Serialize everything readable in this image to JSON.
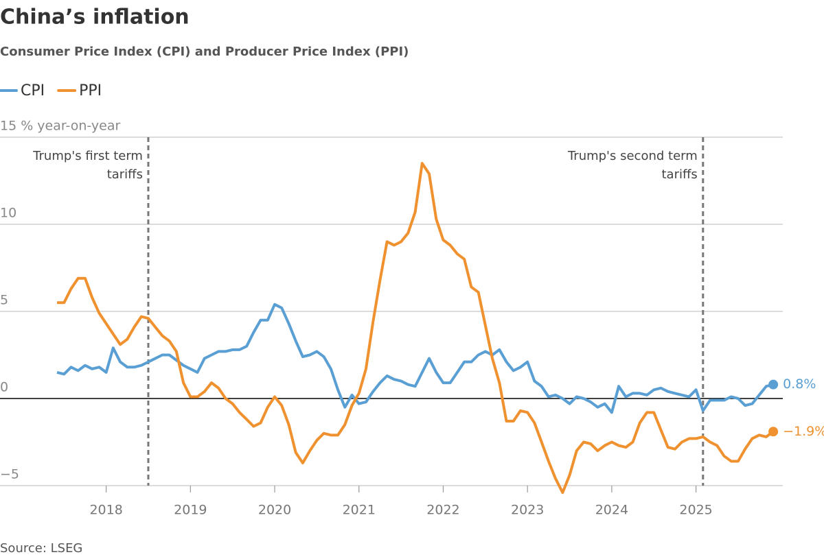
{
  "chart_data": {
    "type": "line",
    "title": "China’s inflation",
    "subtitle": "Consumer Price Index (CPI) and Producer Price Index (PPI)",
    "source": "Source: LSEG",
    "x": [
      2017.417,
      2017.5,
      2017.583,
      2017.667,
      2017.75,
      2017.833,
      2017.917,
      2018,
      2018.083,
      2018.167,
      2018.25,
      2018.333,
      2018.417,
      2018.5,
      2018.583,
      2018.667,
      2018.75,
      2018.833,
      2018.917,
      2019,
      2019.083,
      2019.167,
      2019.25,
      2019.333,
      2019.417,
      2019.5,
      2019.583,
      2019.667,
      2019.75,
      2019.833,
      2019.917,
      2020,
      2020.083,
      2020.167,
      2020.25,
      2020.333,
      2020.417,
      2020.5,
      2020.583,
      2020.667,
      2020.75,
      2020.833,
      2020.917,
      2021,
      2021.083,
      2021.167,
      2021.25,
      2021.333,
      2021.417,
      2021.5,
      2021.583,
      2021.667,
      2021.75,
      2021.833,
      2021.917,
      2022,
      2022.083,
      2022.167,
      2022.25,
      2022.333,
      2022.417,
      2022.5,
      2022.583,
      2022.667,
      2022.75,
      2022.833,
      2022.917,
      2023,
      2023.083,
      2023.167,
      2023.25,
      2023.333,
      2023.417,
      2023.5,
      2023.583,
      2023.667,
      2023.75,
      2023.833,
      2023.917,
      2024,
      2024.083,
      2024.167,
      2024.25,
      2024.333,
      2024.417,
      2024.5,
      2024.583,
      2024.667,
      2024.75,
      2024.833,
      2024.917,
      2025,
      2025.083,
      2025.167,
      2025.25,
      2025.333,
      2025.417,
      2025.5,
      2025.583,
      2025.667,
      2025.75,
      2025.833,
      2025.917
    ],
    "series": [
      {
        "name": "CPI",
        "color": "#5a9fd4",
        "end_label": "0.8%",
        "values": [
          1.5,
          1.4,
          1.8,
          1.6,
          1.9,
          1.7,
          1.8,
          1.5,
          2.9,
          2.1,
          1.8,
          1.8,
          1.9,
          2.1,
          2.3,
          2.5,
          2.5,
          2.2,
          1.9,
          1.7,
          1.5,
          2.3,
          2.5,
          2.7,
          2.7,
          2.8,
          2.8,
          3.0,
          3.8,
          4.5,
          4.5,
          5.4,
          5.2,
          4.3,
          3.3,
          2.4,
          2.5,
          2.7,
          2.4,
          1.7,
          0.5,
          -0.5,
          0.2,
          -0.3,
          -0.2,
          0.4,
          0.9,
          1.3,
          1.1,
          1.0,
          0.8,
          0.7,
          1.5,
          2.3,
          1.5,
          0.9,
          0.9,
          1.5,
          2.1,
          2.1,
          2.5,
          2.7,
          2.5,
          2.8,
          2.1,
          1.6,
          1.8,
          2.1,
          1.0,
          0.7,
          0.1,
          0.2,
          0.0,
          -0.3,
          0.1,
          0.0,
          -0.2,
          -0.5,
          -0.3,
          -0.8,
          0.7,
          0.1,
          0.3,
          0.3,
          0.2,
          0.5,
          0.6,
          0.4,
          0.3,
          0.2,
          0.1,
          0.5,
          -0.7,
          -0.1,
          -0.1,
          -0.1,
          0.1,
          0.0,
          -0.4,
          -0.3,
          0.2,
          0.7,
          0.8
        ]
      },
      {
        "name": "PPI",
        "color": "#f0912f",
        "end_label": "−1.9%",
        "values": [
          5.5,
          5.5,
          6.3,
          6.9,
          6.9,
          5.8,
          4.9,
          4.3,
          3.7,
          3.1,
          3.4,
          4.1,
          4.7,
          4.6,
          4.1,
          3.6,
          3.3,
          2.7,
          0.9,
          0.1,
          0.1,
          0.4,
          0.9,
          0.6,
          0.0,
          -0.3,
          -0.8,
          -1.2,
          -1.6,
          -1.4,
          -0.5,
          0.1,
          -0.4,
          -1.5,
          -3.1,
          -3.7,
          -3.0,
          -2.4,
          -2.0,
          -2.1,
          -2.1,
          -1.5,
          -0.4,
          0.3,
          1.7,
          4.4,
          6.8,
          9.0,
          8.8,
          9.0,
          9.5,
          10.7,
          13.5,
          12.9,
          10.3,
          9.1,
          8.8,
          8.3,
          8.0,
          6.4,
          6.1,
          4.2,
          2.3,
          0.9,
          -1.3,
          -1.3,
          -0.7,
          -0.8,
          -1.4,
          -2.5,
          -3.6,
          -4.6,
          -5.4,
          -4.4,
          -3.0,
          -2.5,
          -2.6,
          -3.0,
          -2.7,
          -2.5,
          -2.7,
          -2.8,
          -2.5,
          -1.4,
          -0.8,
          -0.8,
          -1.8,
          -2.8,
          -2.9,
          -2.5,
          -2.3,
          -2.3,
          -2.2,
          -2.5,
          -2.7,
          -3.3,
          -3.6,
          -3.6,
          -2.9,
          -2.3,
          -2.1,
          -2.2,
          -1.9
        ]
      }
    ],
    "xlim": [
      2016.74,
      2026.03
    ],
    "xticks": [
      2018,
      2019,
      2020,
      2021,
      2022,
      2023,
      2024,
      2025
    ],
    "ylim": [
      -5,
      15
    ],
    "yticks": [
      {
        "value": 15,
        "label": "15 % year-on-year"
      },
      10,
      5,
      0,
      {
        "value": -5,
        "label": "−5"
      }
    ],
    "grid": true,
    "legend": "top-left",
    "annotations": [
      {
        "x": 2018.5,
        "lines": [
          "Trump's first term",
          "tariffs"
        ]
      },
      {
        "x": 2025.083,
        "lines": [
          "Trump's second term",
          "tariffs"
        ]
      }
    ]
  }
}
